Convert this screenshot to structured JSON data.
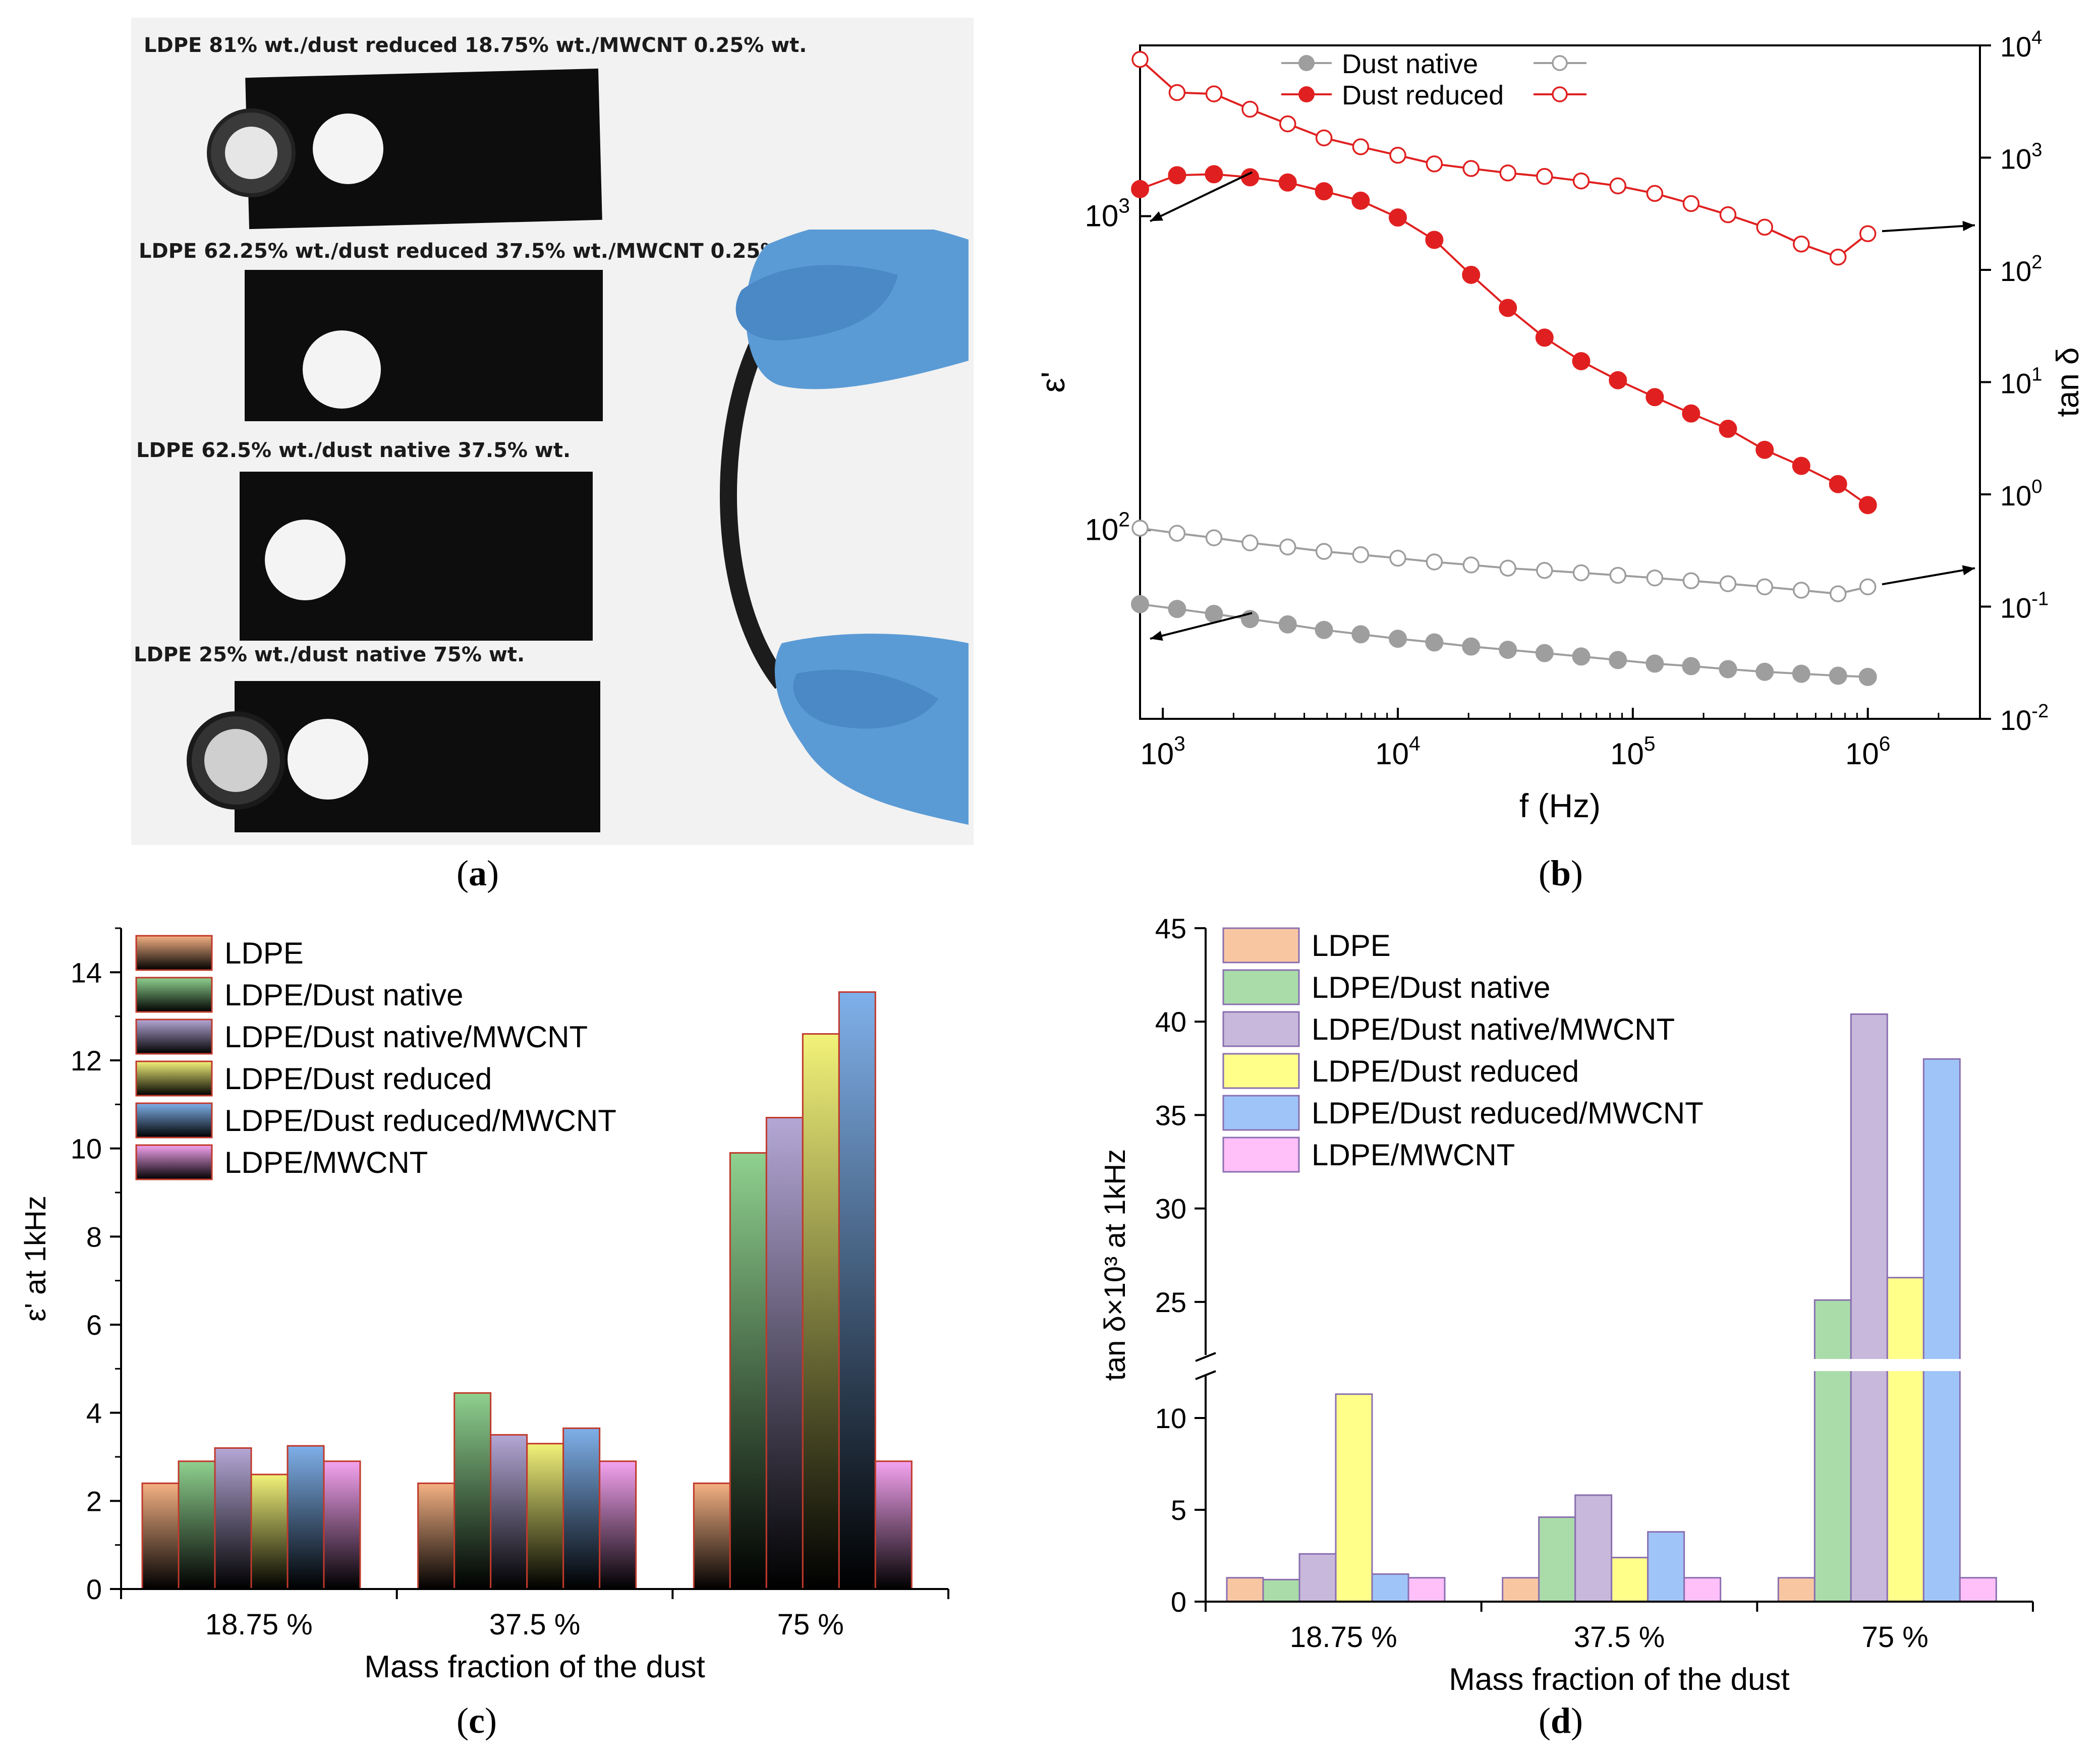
{
  "panel_a": {
    "samples": [
      {
        "label": "LDPE 81% wt./dust reduced 18.75% wt./MWCNT 0.25% wt."
      },
      {
        "label": "LDPE 62.25% wt./dust reduced 37.5% wt./MWCNT 0.25% wt."
      },
      {
        "label": "LDPE 62.5% wt./dust native 37.5% wt."
      },
      {
        "label": "LDPE 25% wt./dust native 75% wt."
      }
    ],
    "caption_letter": "a"
  },
  "captions": {
    "b": "b",
    "c": "c",
    "d": "d"
  },
  "chart_data": [
    {
      "id": "b",
      "type": "line",
      "xlabel": "f (Hz)",
      "ylabel_left": "ε'",
      "ylabel_right": "tan δ",
      "xscale": "log",
      "yscale_left": "log",
      "yscale_right": "log",
      "xlim": [
        800,
        3000000
      ],
      "ylim_left": [
        25,
        3500
      ],
      "ylim_right": [
        0.01,
        10000
      ],
      "x_ticks": [
        {
          "v": 1000,
          "base": "10",
          "exp": "3"
        },
        {
          "v": 10000,
          "base": "10",
          "exp": "4"
        },
        {
          "v": 100000,
          "base": "10",
          "exp": "5"
        },
        {
          "v": 1000000,
          "base": "10",
          "exp": "6"
        }
      ],
      "y_left_ticks": [
        {
          "v": 100,
          "base": "10",
          "exp": "2"
        },
        {
          "v": 1000,
          "base": "10",
          "exp": "3"
        }
      ],
      "y_right_ticks": [
        {
          "v": 0.01,
          "base": "10",
          "exp": "-2"
        },
        {
          "v": 0.1,
          "base": "10",
          "exp": "-1"
        },
        {
          "v": 1,
          "base": "10",
          "exp": "0"
        },
        {
          "v": 10,
          "base": "10",
          "exp": "1"
        },
        {
          "v": 100,
          "base": "10",
          "exp": "2"
        },
        {
          "v": 1000,
          "base": "10",
          "exp": "3"
        },
        {
          "v": 10000,
          "base": "10",
          "exp": "4"
        }
      ],
      "legend": [
        {
          "name": "Dust native",
          "color": "#9e9e9e"
        },
        {
          "name": "Dust reduced",
          "color": "#e02020"
        }
      ],
      "legend_position": "top-left",
      "series": [
        {
          "name": "Dust native",
          "axis": "left",
          "marker": "filled",
          "color": "#9e9e9e",
          "x": [
            800,
            1150,
            1650,
            2350,
            3400,
            4850,
            6950,
            10000,
            14300,
            20500,
            29400,
            42100,
            60300,
            86400,
            124000,
            177000,
            254000,
            364000,
            521000,
            747000,
            1000000
          ],
          "y": [
            58,
            56,
            54,
            52,
            50,
            48,
            46.5,
            45,
            43.8,
            42.5,
            41.5,
            40.5,
            39.5,
            38.5,
            37.5,
            36.8,
            36,
            35.3,
            34.8,
            34.3,
            34
          ]
        },
        {
          "name": "Dust native",
          "axis": "right",
          "marker": "open",
          "color": "#9e9e9e",
          "x": [
            800,
            1150,
            1650,
            2350,
            3400,
            4850,
            6950,
            10000,
            14300,
            20500,
            29400,
            42100,
            60300,
            86400,
            124000,
            177000,
            254000,
            364000,
            521000,
            747000,
            1000000
          ],
          "y": [
            0.5,
            0.45,
            0.41,
            0.37,
            0.34,
            0.31,
            0.29,
            0.27,
            0.25,
            0.235,
            0.22,
            0.21,
            0.2,
            0.19,
            0.18,
            0.17,
            0.16,
            0.15,
            0.14,
            0.13,
            0.15
          ]
        },
        {
          "name": "Dust reduced",
          "axis": "left",
          "marker": "filled",
          "color": "#e02020",
          "x": [
            800,
            1150,
            1650,
            2350,
            3400,
            4850,
            6950,
            10000,
            14300,
            20500,
            29400,
            42100,
            60300,
            86400,
            124000,
            177000,
            254000,
            364000,
            521000,
            747000,
            1000000
          ],
          "y": [
            1220,
            1350,
            1360,
            1330,
            1280,
            1200,
            1120,
            990,
            840,
            650,
            510,
            410,
            345,
            300,
            265,
            235,
            210,
            180,
            160,
            140,
            120
          ]
        },
        {
          "name": "Dust reduced",
          "axis": "right",
          "marker": "open",
          "color": "#e02020",
          "x": [
            800,
            1150,
            1650,
            2350,
            3400,
            4850,
            6950,
            10000,
            14300,
            20500,
            29400,
            42100,
            60300,
            86400,
            124000,
            177000,
            254000,
            364000,
            521000,
            747000,
            1000000
          ],
          "y": [
            7500,
            3800,
            3700,
            2700,
            2000,
            1500,
            1250,
            1050,
            880,
            800,
            730,
            680,
            620,
            560,
            480,
            390,
            310,
            240,
            170,
            130,
            210
          ]
        }
      ]
    },
    {
      "id": "c",
      "type": "bar",
      "categories": [
        "18.75 %",
        "37.5 %",
        "75 %"
      ],
      "xlabel": "Mass fraction of the dust",
      "ylabel": "ε' at 1kHz",
      "ylim": [
        0,
        15
      ],
      "y_ticks": [
        0,
        2,
        4,
        6,
        8,
        10,
        12,
        14
      ],
      "legend_position": "top-left",
      "series": [
        {
          "name": "LDPE",
          "color": "#f4b183",
          "values": [
            2.4,
            2.4,
            2.4
          ]
        },
        {
          "name": "LDPE/Dust native",
          "color": "#8fd18f",
          "values": [
            2.9,
            4.45,
            9.9
          ]
        },
        {
          "name": "LDPE/Dust native/MWCNT",
          "color": "#b4a7d6",
          "values": [
            3.2,
            3.5,
            10.7
          ]
        },
        {
          "name": "LDPE/Dust reduced",
          "color": "#f2f27a",
          "values": [
            2.6,
            3.3,
            12.6
          ]
        },
        {
          "name": "LDPE/Dust reduced/MWCNT",
          "color": "#7fb0ea",
          "values": [
            3.25,
            3.65,
            13.55
          ]
        },
        {
          "name": "LDPE/MWCNT",
          "color": "#f5a3f0",
          "values": [
            2.9,
            2.9,
            2.9
          ]
        }
      ]
    },
    {
      "id": "d",
      "type": "bar",
      "categories": [
        "18.75 %",
        "37.5 %",
        "75 %"
      ],
      "xlabel": "Mass fraction of the dust",
      "ylabel": "tan δ×10³ at 1kHz",
      "axis_break": {
        "lower": [
          0,
          12.5
        ],
        "upper": [
          22,
          45
        ]
      },
      "y_ticks_lower": [
        0,
        5,
        10
      ],
      "y_ticks_upper": [
        25,
        30,
        35,
        40,
        45
      ],
      "legend_position": "top-left",
      "series": [
        {
          "name": "LDPE",
          "color": "#f8c7a2",
          "values": [
            1.3,
            1.3,
            1.3
          ]
        },
        {
          "name": "LDPE/Dust native",
          "color": "#a9dca9",
          "values": [
            1.2,
            4.6,
            25.1
          ]
        },
        {
          "name": "LDPE/Dust native/MWCNT",
          "color": "#c8b8dc",
          "values": [
            2.6,
            5.8,
            40.4
          ]
        },
        {
          "name": "LDPE/Dust reduced",
          "color": "#ffff8a",
          "values": [
            11.3,
            2.4,
            26.3
          ]
        },
        {
          "name": "LDPE/Dust reduced/MWCNT",
          "color": "#9fc5f8",
          "values": [
            1.5,
            3.8,
            38.0
          ]
        },
        {
          "name": "LDPE/MWCNT",
          "color": "#ffbff9",
          "values": [
            1.3,
            1.3,
            1.3
          ]
        }
      ]
    }
  ]
}
